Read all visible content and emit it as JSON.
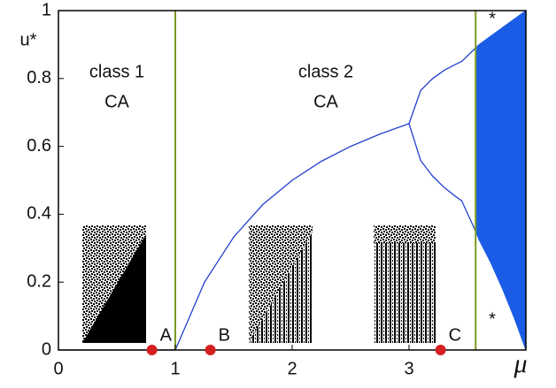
{
  "chart_data": {
    "type": "line",
    "y_label": "u*",
    "x_label": "μ",
    "xlim": [
      0,
      4
    ],
    "ylim": [
      0,
      1
    ],
    "xticks": [
      0,
      1,
      2,
      3
    ],
    "yticks": [
      0,
      0.2,
      0.4,
      0.6,
      0.8,
      1
    ],
    "annotations": [
      "class 1",
      "CA",
      "class 2",
      "CA",
      "*",
      "*"
    ],
    "annotation_color": "#7a9a22",
    "vlines": [
      1,
      3.57
    ],
    "branches": [
      {
        "color": "#2240d0",
        "x": [
          0,
          1
        ],
        "values": [
          0,
          0
        ]
      },
      {
        "color": "#2240d0",
        "x": [
          1,
          1.25,
          1.5,
          1.75,
          2,
          2.25,
          2.5,
          2.75,
          3
        ],
        "values": [
          0,
          0.2,
          0.333,
          0.429,
          0.5,
          0.556,
          0.6,
          0.636,
          0.667
        ]
      },
      {
        "color": "#2240d0",
        "x": [
          3,
          3.1,
          3.2,
          3.3,
          3.4,
          3.45,
          3.57
        ],
        "values": [
          0.667,
          0.765,
          0.799,
          0.824,
          0.842,
          0.85,
          0.89
        ]
      },
      {
        "color": "#2240d0",
        "x": [
          3,
          3.1,
          3.2,
          3.3,
          3.4,
          3.45,
          3.57
        ],
        "values": [
          0.667,
          0.558,
          0.513,
          0.479,
          0.452,
          0.44,
          0.35
        ]
      }
    ],
    "band": {
      "color": "#1a5ce6",
      "x": [
        3.57,
        3.6,
        3.7,
        3.8,
        3.9,
        4
      ],
      "upper": [
        0.89,
        0.9,
        0.925,
        0.95,
        0.975,
        1
      ],
      "lower": [
        0.35,
        0.324,
        0.257,
        0.18,
        0.095,
        0
      ]
    },
    "markers": [
      {
        "label": "A",
        "x": 0.8
      },
      {
        "label": "B",
        "x": 1.3
      },
      {
        "label": "C",
        "x": 3.27
      }
    ],
    "marker_color": "#d42020"
  }
}
